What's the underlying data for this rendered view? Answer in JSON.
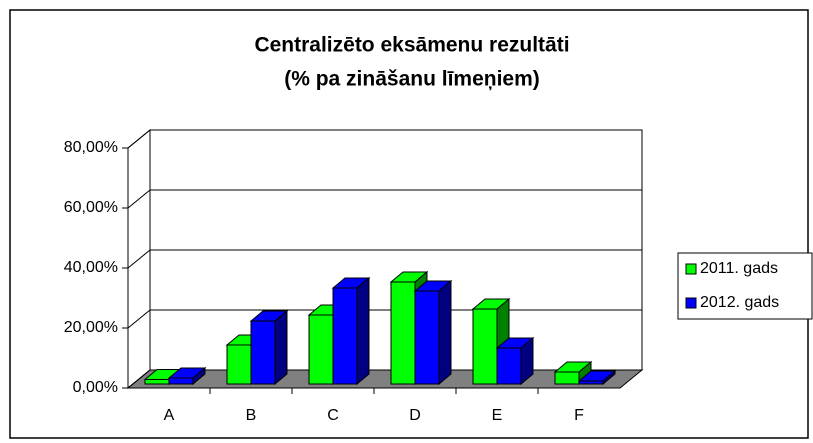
{
  "chart_data": {
    "type": "bar3d",
    "title": [
      "Centralizēto eksāmenu rezultāti",
      "(% pa zināšanu līmeņiem)"
    ],
    "categories": [
      "A",
      "B",
      "C",
      "D",
      "E",
      "F"
    ],
    "series": [
      {
        "name": "2011. gads",
        "color": "#00ff00",
        "values": [
          1.5,
          13,
          23,
          34,
          25,
          4
        ]
      },
      {
        "name": "2012. gads",
        "color": "#0000ff",
        "values": [
          2,
          21,
          32,
          31,
          12,
          1
        ]
      }
    ],
    "ylim": [
      0,
      80
    ],
    "yticks": [
      {
        "value": 0,
        "label": "0,00%"
      },
      {
        "value": 20,
        "label": "20,00%"
      },
      {
        "value": 40,
        "label": "40,00%"
      },
      {
        "value": 60,
        "label": "60,00%"
      },
      {
        "value": 80,
        "label": "80,00%"
      }
    ],
    "grid": true,
    "legend": "right"
  }
}
